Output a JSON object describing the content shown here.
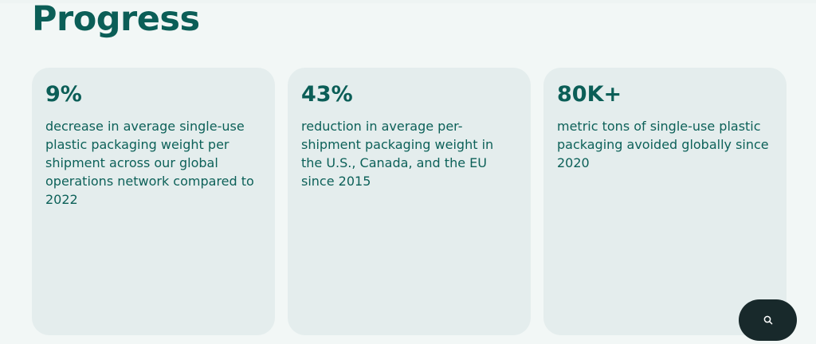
{
  "section": {
    "heading": "Progress"
  },
  "stats": [
    {
      "value": "9%",
      "description": "decrease in average single-use plastic packaging weight per shipment across our global operations network compared to 2022"
    },
    {
      "value": "43%",
      "description": "reduction in average per-shipment packaging weight in the U.S., Canada, and the EU since 2015"
    },
    {
      "value": "80K+",
      "description": "metric tons of single-use plastic packaging avoided globally since 2020"
    }
  ],
  "search_button": {
    "icon": "search-icon"
  },
  "colors": {
    "background": "#f2f7f6",
    "card": "#e4eded",
    "accent": "#0b5e57",
    "fab": "#18292b"
  }
}
